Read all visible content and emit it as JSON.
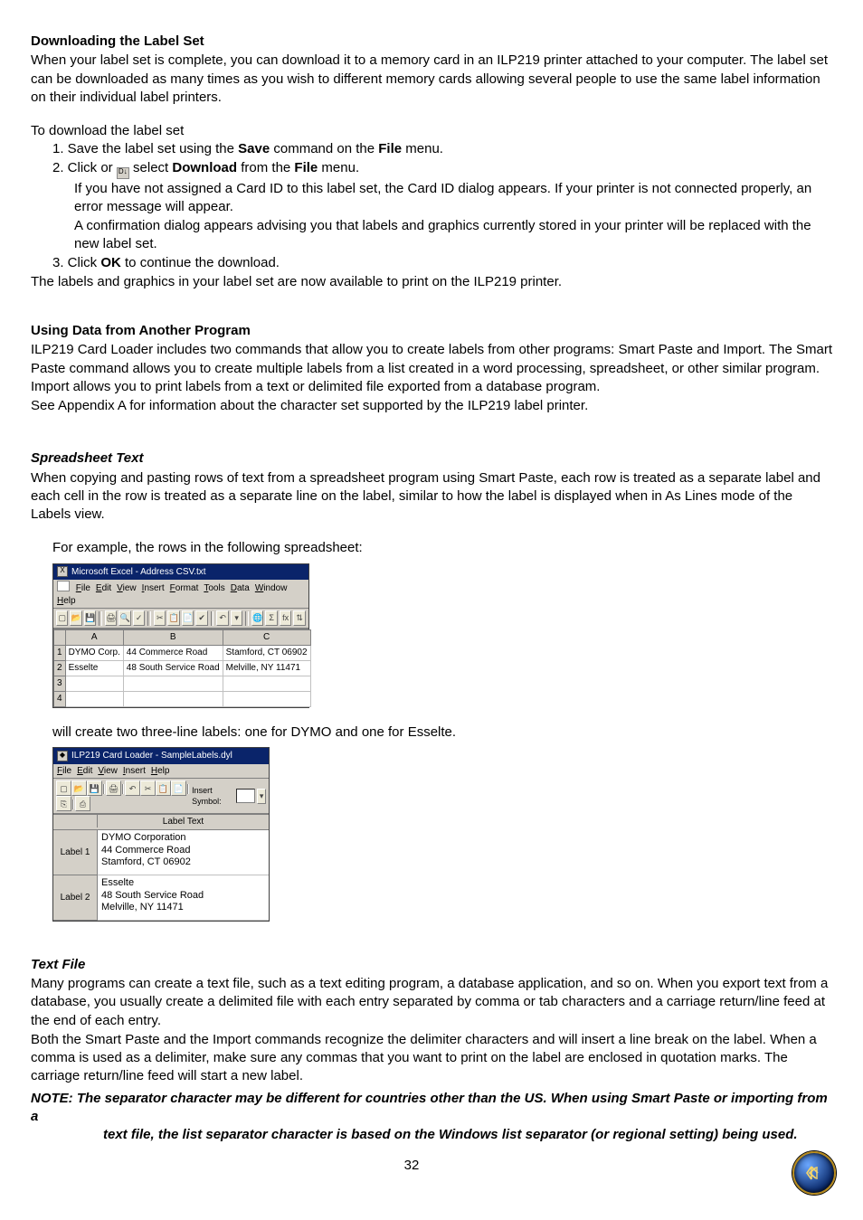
{
  "section1": {
    "title": "Downloading the Label Set",
    "p1": "When your label set is complete, you can download it to a memory card in an ILP219 printer attached to your computer. The label set can be downloaded as many times as you wish to different memory cards allowing several people to use the same label information on their individual label printers.",
    "lead": "To download the label set",
    "step1_a": "1. Save the label set using the ",
    "step1_b": "Save",
    "step1_c": " command on the ",
    "step1_d": "File",
    "step1_e": " menu.",
    "step2_a": "2. Click or ",
    "step2_b": " select ",
    "step2_c": "Download",
    "step2_d": " from the ",
    "step2_e": "File",
    "step2_f": " menu.",
    "step2_note1": "If you have not assigned a Card ID to this label set, the Card ID dialog appears. If your printer is not connected properly, an error message will appear.",
    "step2_note2": "A confirmation dialog appears advising you that labels and graphics currently stored in your printer will be replaced with the new label set.",
    "step3_a": "3. Click ",
    "step3_b": "OK",
    "step3_c": " to continue the download.",
    "tail": "The labels and graphics in your label set are now available to print on the ILP219 printer."
  },
  "section2": {
    "title": "Using Data from Another Program",
    "p1": "ILP219 Card Loader includes two commands that allow you to create labels from other programs: Smart Paste and Import. The Smart Paste command allows you to create multiple labels from a list created in a word processing, spreadsheet, or other similar program. Import allows you to print labels from a text or delimited file exported from a database program.",
    "p2": "See Appendix A for information about the character set supported by the ILP219 label printer."
  },
  "section3": {
    "title": "Spreadsheet Text",
    "p1": "When copying and pasting rows of text from a spreadsheet program using Smart Paste, each row is treated as a separate label and each cell in the row is treated as a separate line on the label, similar to how the label is displayed when in As Lines mode of the Labels view.",
    "lead": "For example, the rows in the following spreadsheet:"
  },
  "excel": {
    "title": "Microsoft Excel - Address CSV.txt",
    "menus": [
      "File",
      "Edit",
      "View",
      "Insert",
      "Format",
      "Tools",
      "Data",
      "Window",
      "Help"
    ],
    "toolbar_glyphs": [
      "▢",
      "📂",
      "💾",
      "|",
      "🖨",
      "🔍",
      "✓",
      "|",
      "✂",
      "📋",
      "📄",
      "✔",
      "|",
      "↶",
      "▾",
      "|",
      "🌐",
      "Σ",
      "fx",
      "⇅"
    ],
    "cols": [
      "A",
      "B",
      "C"
    ],
    "rows": [
      {
        "n": "1",
        "a": "DYMO Corp.",
        "b": "44 Commerce Road",
        "c": "Stamford, CT 06902"
      },
      {
        "n": "2",
        "a": "Esselte",
        "b": "48 South Service Road",
        "c": "Melville, NY 11471"
      },
      {
        "n": "3",
        "a": "",
        "b": "",
        "c": ""
      },
      {
        "n": "4",
        "a": "",
        "b": "",
        "c": ""
      }
    ]
  },
  "between_shots": "will create two three-line labels: one for DYMO and one for Esselte.",
  "ilp": {
    "title": "ILP219 Card Loader - SampleLabels.dyl",
    "menus": [
      "File",
      "Edit",
      "View",
      "Insert",
      "Help"
    ],
    "toolbar_glyphs": [
      "▢",
      "📂",
      "💾",
      "|",
      "🖨",
      "|",
      "↶",
      "✂",
      "📋",
      "📄",
      "|",
      "⎘",
      "|",
      "⎙"
    ],
    "symbol_label": "Insert Symbol:",
    "header_right": "Label Text",
    "rows": [
      {
        "label": "Label 1",
        "l1": "DYMO Corporation",
        "l2": "44 Commerce Road",
        "l3": "Stamford, CT 06902"
      },
      {
        "label": "Label 2",
        "l1": "Esselte",
        "l2": "48 South Service Road",
        "l3": "Melville, NY 11471"
      }
    ]
  },
  "section4": {
    "title": "Text File",
    "p1": "Many programs can create a text file, such as a text editing program, a database application, and so on. When you export text from a database, you usually create a delimited file with each entry separated by comma or tab characters and a carriage return/line feed at the end of each entry.",
    "p2": "Both the Smart Paste and the Import commands recognize the delimiter characters and will insert a line break on the label. When a comma is used as a delimiter, make sure any commas that you want to print on the label are enclosed in quotation marks. The carriage return/line feed will start a new label.",
    "note1": "NOTE: The separator character may be different for countries other than the US.  When using Smart Paste or  importing from a",
    "note2": "text file, the list separator character is based on the Windows list separator (or regional setting) being used."
  },
  "page_number": "32",
  "nav_icon_color": "#f5d56b"
}
